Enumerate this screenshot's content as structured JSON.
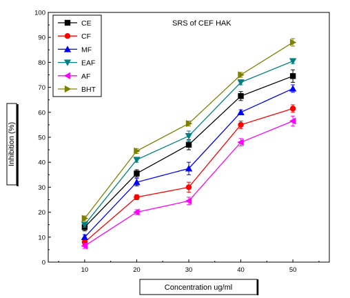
{
  "chart_data": {
    "type": "line",
    "title": "SRS of CEF HAK",
    "xlabel": "Concentration ug/ml",
    "ylabel": "Inhibition (%)",
    "x": [
      10,
      20,
      30,
      40,
      50
    ],
    "xlim": [
      3,
      57
    ],
    "ylim": [
      0,
      100
    ],
    "xticks": [
      "10",
      "20",
      "30",
      "40",
      "50"
    ],
    "yticks": [
      "0",
      "10",
      "20",
      "30",
      "40",
      "50",
      "60",
      "70",
      "80",
      "90",
      "100"
    ],
    "legend_position": "top-left",
    "series": [
      {
        "name": "CE",
        "color": "#000000",
        "marker": "square",
        "values": [
          14,
          35.5,
          47,
          66.5,
          74.5
        ],
        "errors": [
          1.5,
          1.5,
          2,
          1.8,
          2.5
        ]
      },
      {
        "name": "CF",
        "color": "#ff0000",
        "marker": "circle",
        "values": [
          8,
          26,
          30,
          55,
          61.5
        ],
        "errors": [
          1,
          1,
          2,
          1.5,
          1.5
        ]
      },
      {
        "name": "MF",
        "color": "#0000ff",
        "marker": "triangle-up",
        "values": [
          10,
          32,
          37.5,
          60,
          69.5
        ],
        "errors": [
          1,
          1.5,
          2.5,
          1,
          1.5
        ]
      },
      {
        "name": "EAF",
        "color": "#008080",
        "marker": "triangle-down",
        "values": [
          15,
          41,
          50.5,
          72,
          80.5
        ],
        "errors": [
          1,
          1,
          2,
          1,
          1
        ]
      },
      {
        "name": "AF",
        "color": "#ff00ff",
        "marker": "triangle-left",
        "values": [
          6.5,
          20,
          24.5,
          48,
          56.5
        ],
        "errors": [
          1,
          1,
          1.5,
          1.5,
          2
        ]
      },
      {
        "name": "BHT",
        "color": "#808000",
        "marker": "triangle-right",
        "values": [
          17.5,
          44.5,
          55.5,
          75,
          88
        ],
        "errors": [
          1,
          1,
          1,
          1,
          1.5
        ]
      }
    ]
  }
}
